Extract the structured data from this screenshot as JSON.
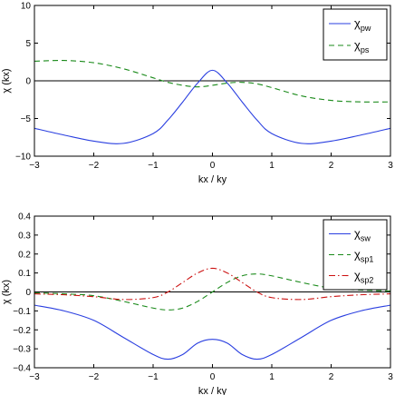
{
  "chart_data": [
    {
      "type": "line",
      "title": "",
      "xlabel": "kx / ky",
      "ylabel": "χ (kx)",
      "xlim": [
        -3,
        3
      ],
      "ylim": [
        -10,
        10
      ],
      "xticks": [
        "−3",
        "−2",
        "−1",
        "0",
        "1",
        "2",
        "3"
      ],
      "yticks": [
        "10",
        "5",
        "0",
        "−5",
        "−10"
      ],
      "legend_position": "top-right",
      "zero_line": true,
      "series": [
        {
          "name": "χpw",
          "label_main": "χ",
          "label_sub": "pw",
          "color": "#2a3fe0",
          "style": "solid",
          "x": [
            -3,
            -2.5,
            -2,
            -1.5,
            -1,
            -0.75,
            -0.5,
            -0.25,
            0,
            0.25,
            0.5,
            0.75,
            1,
            1.5,
            2,
            2.5,
            3
          ],
          "y": [
            -6.3,
            -7.2,
            -8.0,
            -8.3,
            -7.0,
            -5.2,
            -2.8,
            -0.3,
            1.4,
            -0.3,
            -2.8,
            -5.2,
            -7.0,
            -8.3,
            -8.0,
            -7.2,
            -6.3
          ]
        },
        {
          "name": "χps",
          "label_main": "χ",
          "label_sub": "ps",
          "color": "#1a8a1a",
          "style": "dashed",
          "x": [
            -3,
            -2.5,
            -2,
            -1.5,
            -1,
            -0.75,
            -0.5,
            -0.25,
            0,
            0.25,
            0.5,
            0.75,
            1,
            1.5,
            2,
            2.5,
            3
          ],
          "y": [
            2.6,
            2.7,
            2.4,
            1.6,
            0.4,
            -0.2,
            -0.6,
            -0.8,
            -0.6,
            -0.3,
            -0.2,
            -0.4,
            -0.9,
            -2.0,
            -2.6,
            -2.8,
            -2.8
          ]
        }
      ]
    },
    {
      "type": "line",
      "title": "",
      "xlabel": "kx / ky",
      "ylabel": "χ (kx)",
      "xlim": [
        -3,
        3
      ],
      "ylim": [
        -0.4,
        0.4
      ],
      "xticks": [
        "−3",
        "−2",
        "−1",
        "0",
        "1",
        "2",
        "3"
      ],
      "yticks": [
        "0.4",
        "0.3",
        "0.2",
        "0.1",
        "0",
        "−0.1",
        "−0.2",
        "−0.3",
        "−0.4"
      ],
      "legend_position": "top-right",
      "zero_line": true,
      "series": [
        {
          "name": "χsw",
          "label_main": "χ",
          "label_sub": "sw",
          "color": "#2a3fe0",
          "style": "solid",
          "x": [
            -3,
            -2.5,
            -2,
            -1.5,
            -1,
            -0.75,
            -0.5,
            -0.25,
            0,
            0.25,
            0.5,
            0.75,
            1,
            1.5,
            2,
            2.5,
            3
          ],
          "y": [
            -0.07,
            -0.1,
            -0.15,
            -0.24,
            -0.33,
            -0.355,
            -0.33,
            -0.27,
            -0.25,
            -0.27,
            -0.33,
            -0.355,
            -0.33,
            -0.24,
            -0.15,
            -0.1,
            -0.07
          ]
        },
        {
          "name": "χsp1",
          "label_main": "χ",
          "label_sub": "sp1",
          "color": "#1a8a1a",
          "style": "dashed",
          "x": [
            -3,
            -2.5,
            -2,
            -1.5,
            -1,
            -0.75,
            -0.5,
            -0.25,
            0,
            0.25,
            0.5,
            0.75,
            1,
            1.5,
            2,
            2.5,
            3
          ],
          "y": [
            -0.005,
            -0.01,
            -0.02,
            -0.05,
            -0.085,
            -0.095,
            -0.085,
            -0.05,
            0.0,
            0.05,
            0.085,
            0.095,
            0.085,
            0.05,
            0.02,
            0.01,
            0.005
          ]
        },
        {
          "name": "χsp2",
          "label_main": "χ",
          "label_sub": "sp2",
          "color": "#cc1111",
          "style": "dashdot",
          "x": [
            -3,
            -2.5,
            -2,
            -1.5,
            -1,
            -0.75,
            -0.5,
            -0.25,
            0,
            0.25,
            0.5,
            0.75,
            1,
            1.5,
            2,
            2.5,
            3
          ],
          "y": [
            -0.01,
            -0.015,
            -0.025,
            -0.04,
            -0.03,
            0.0,
            0.05,
            0.1,
            0.125,
            0.1,
            0.05,
            0.0,
            -0.03,
            -0.04,
            -0.025,
            -0.015,
            -0.01
          ]
        }
      ]
    }
  ]
}
